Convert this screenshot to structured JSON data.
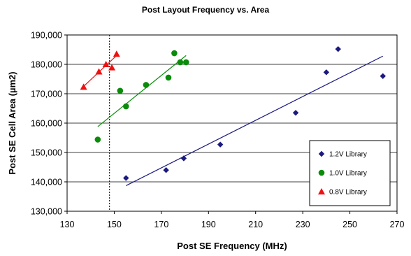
{
  "chart_data": {
    "type": "scatter",
    "title": "Post Layout Frequency vs. Area",
    "xlabel": "Post SE Frequency (MHz)",
    "ylabel": "Post SE Cell Area (µm2)",
    "xlim": [
      130,
      270
    ],
    "ylim": [
      130000,
      190000
    ],
    "x_ticks": [
      130,
      150,
      170,
      190,
      210,
      230,
      250,
      270
    ],
    "x_tick_labels": [
      "130",
      "150",
      "170",
      "190",
      "210",
      "230",
      "250",
      "270"
    ],
    "y_ticks": [
      130000,
      140000,
      150000,
      160000,
      170000,
      180000,
      190000
    ],
    "y_tick_labels": [
      "130,000",
      "140,000",
      "150,000",
      "160,000",
      "170,000",
      "180,000",
      "190,000"
    ],
    "grid": "horizontal",
    "legend_position": "bottom-right",
    "reference_line": {
      "axis": "x",
      "value": 148,
      "style": "dotted"
    },
    "series": [
      {
        "name": "1.2V Library",
        "marker": "diamond",
        "color": "#1a1a80",
        "points": [
          [
            155,
            141300
          ],
          [
            172,
            144000
          ],
          [
            179.5,
            148000
          ],
          [
            195,
            152700
          ],
          [
            227,
            163500
          ],
          [
            240,
            177300
          ],
          [
            245,
            185200
          ],
          [
            264,
            176000
          ]
        ],
        "trendline": [
          [
            155,
            138700
          ],
          [
            264,
            182800
          ]
        ]
      },
      {
        "name": "1.0V Library",
        "marker": "circle",
        "color": "#0a8c0a",
        "points": [
          [
            143,
            154400
          ],
          [
            152.5,
            171000
          ],
          [
            155,
            165700
          ],
          [
            163.5,
            173000
          ],
          [
            173,
            175500
          ],
          [
            175.5,
            183800
          ],
          [
            178,
            180700
          ],
          [
            180.5,
            180700
          ]
        ],
        "trendline": [
          [
            143,
            158800
          ],
          [
            180.5,
            183000
          ]
        ]
      },
      {
        "name": "0.8V Library",
        "marker": "triangle",
        "color": "#ee1111",
        "points": [
          [
            137,
            172300
          ],
          [
            143.5,
            177500
          ],
          [
            146.5,
            180000
          ],
          [
            149,
            178900
          ],
          [
            151,
            183500
          ]
        ],
        "trendline": [
          [
            137,
            172500
          ],
          [
            151,
            183000
          ]
        ]
      }
    ]
  }
}
